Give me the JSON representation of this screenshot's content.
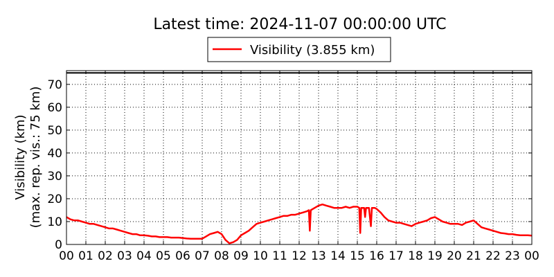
{
  "chart_data": {
    "type": "line",
    "title": "Latest time: 2024-11-07 00:00:00 UTC",
    "xlabel": "",
    "ylabel_line1": "Visibility (km)",
    "ylabel_line2": "(max. rep. vis.: 75 km)",
    "xlim": [
      0,
      24
    ],
    "ylim": [
      0,
      76
    ],
    "x_ticks": [
      0,
      1,
      2,
      3,
      4,
      5,
      6,
      7,
      8,
      9,
      10,
      11,
      12,
      13,
      14,
      15,
      16,
      17,
      18,
      19,
      20,
      21,
      22,
      23,
      24
    ],
    "x_tick_labels": [
      "00",
      "01",
      "02",
      "03",
      "04",
      "05",
      "06",
      "07",
      "08",
      "09",
      "10",
      "11",
      "12",
      "13",
      "14",
      "15",
      "16",
      "17",
      "18",
      "19",
      "20",
      "21",
      "22",
      "23",
      "00"
    ],
    "y_ticks": [
      0,
      10,
      20,
      30,
      40,
      50,
      60,
      70
    ],
    "y_tick_labels": [
      "0",
      "10",
      "20",
      "30",
      "40",
      "50",
      "60",
      "70"
    ],
    "grid": true,
    "reference_line": 75,
    "legend_position": "top-center-above-plot",
    "series": [
      {
        "name": "Visibility (3.855 km)",
        "color": "#ff0000",
        "points": [
          [
            0.0,
            12.0
          ],
          [
            0.2,
            11.0
          ],
          [
            0.4,
            10.5
          ],
          [
            0.6,
            10.5
          ],
          [
            0.8,
            10.0
          ],
          [
            1.0,
            9.5
          ],
          [
            1.2,
            9.0
          ],
          [
            1.4,
            9.0
          ],
          [
            1.6,
            8.5
          ],
          [
            1.8,
            8.0
          ],
          [
            2.0,
            7.5
          ],
          [
            2.2,
            7.0
          ],
          [
            2.4,
            7.0
          ],
          [
            2.6,
            6.5
          ],
          [
            2.8,
            6.0
          ],
          [
            3.0,
            5.5
          ],
          [
            3.2,
            5.0
          ],
          [
            3.4,
            4.5
          ],
          [
            3.6,
            4.5
          ],
          [
            3.8,
            4.0
          ],
          [
            4.0,
            4.0
          ],
          [
            4.2,
            3.8
          ],
          [
            4.4,
            3.5
          ],
          [
            4.6,
            3.5
          ],
          [
            4.8,
            3.2
          ],
          [
            5.0,
            3.2
          ],
          [
            5.2,
            3.2
          ],
          [
            5.4,
            3.0
          ],
          [
            5.6,
            3.0
          ],
          [
            5.8,
            3.0
          ],
          [
            6.0,
            2.8
          ],
          [
            6.2,
            2.6
          ],
          [
            6.4,
            2.5
          ],
          [
            6.6,
            2.5
          ],
          [
            6.8,
            2.5
          ],
          [
            7.0,
            2.5
          ],
          [
            7.2,
            3.5
          ],
          [
            7.4,
            4.5
          ],
          [
            7.6,
            5.0
          ],
          [
            7.8,
            5.5
          ],
          [
            8.0,
            4.5
          ],
          [
            8.2,
            2.0
          ],
          [
            8.4,
            0.5
          ],
          [
            8.6,
            1.0
          ],
          [
            8.8,
            2.0
          ],
          [
            9.0,
            4.0
          ],
          [
            9.2,
            5.0
          ],
          [
            9.4,
            6.0
          ],
          [
            9.6,
            7.5
          ],
          [
            9.8,
            9.0
          ],
          [
            10.0,
            9.5
          ],
          [
            10.2,
            10.0
          ],
          [
            10.4,
            10.5
          ],
          [
            10.6,
            11.0
          ],
          [
            10.8,
            11.5
          ],
          [
            11.0,
            12.0
          ],
          [
            11.2,
            12.5
          ],
          [
            11.4,
            12.5
          ],
          [
            11.6,
            13.0
          ],
          [
            11.8,
            13.0
          ],
          [
            12.0,
            13.5
          ],
          [
            12.2,
            14.0
          ],
          [
            12.4,
            14.5
          ],
          [
            12.5,
            15.0
          ],
          [
            12.55,
            6.0
          ],
          [
            12.6,
            15.0
          ],
          [
            12.8,
            16.0
          ],
          [
            13.0,
            17.0
          ],
          [
            13.2,
            17.5
          ],
          [
            13.4,
            17.0
          ],
          [
            13.6,
            16.5
          ],
          [
            13.8,
            16.0
          ],
          [
            14.0,
            16.0
          ],
          [
            14.2,
            16.0
          ],
          [
            14.4,
            16.5
          ],
          [
            14.6,
            16.0
          ],
          [
            14.8,
            16.5
          ],
          [
            15.0,
            16.5
          ],
          [
            15.1,
            16.0
          ],
          [
            15.15,
            5.0
          ],
          [
            15.2,
            16.0
          ],
          [
            15.35,
            16.0
          ],
          [
            15.4,
            12.0
          ],
          [
            15.45,
            16.0
          ],
          [
            15.6,
            16.0
          ],
          [
            15.7,
            8.0
          ],
          [
            15.75,
            16.0
          ],
          [
            15.9,
            16.0
          ],
          [
            16.0,
            15.5
          ],
          [
            16.2,
            14.0
          ],
          [
            16.4,
            12.0
          ],
          [
            16.6,
            10.5
          ],
          [
            16.8,
            10.0
          ],
          [
            17.0,
            9.5
          ],
          [
            17.2,
            9.5
          ],
          [
            17.4,
            9.0
          ],
          [
            17.6,
            8.5
          ],
          [
            17.8,
            8.0
          ],
          [
            18.0,
            9.0
          ],
          [
            18.2,
            9.5
          ],
          [
            18.4,
            10.0
          ],
          [
            18.6,
            10.5
          ],
          [
            18.8,
            11.5
          ],
          [
            19.0,
            12.0
          ],
          [
            19.2,
            11.0
          ],
          [
            19.4,
            10.0
          ],
          [
            19.6,
            9.5
          ],
          [
            19.8,
            9.0
          ],
          [
            20.0,
            9.0
          ],
          [
            20.2,
            9.0
          ],
          [
            20.4,
            8.5
          ],
          [
            20.6,
            9.5
          ],
          [
            20.8,
            10.0
          ],
          [
            21.0,
            10.5
          ],
          [
            21.2,
            9.0
          ],
          [
            21.4,
            7.5
          ],
          [
            21.6,
            7.0
          ],
          [
            21.8,
            6.5
          ],
          [
            22.0,
            6.0
          ],
          [
            22.2,
            5.5
          ],
          [
            22.4,
            5.0
          ],
          [
            22.6,
            4.8
          ],
          [
            22.8,
            4.5
          ],
          [
            23.0,
            4.5
          ],
          [
            23.2,
            4.2
          ],
          [
            23.4,
            4.0
          ],
          [
            23.6,
            4.0
          ],
          [
            23.8,
            4.0
          ],
          [
            24.0,
            3.855
          ]
        ]
      }
    ]
  }
}
